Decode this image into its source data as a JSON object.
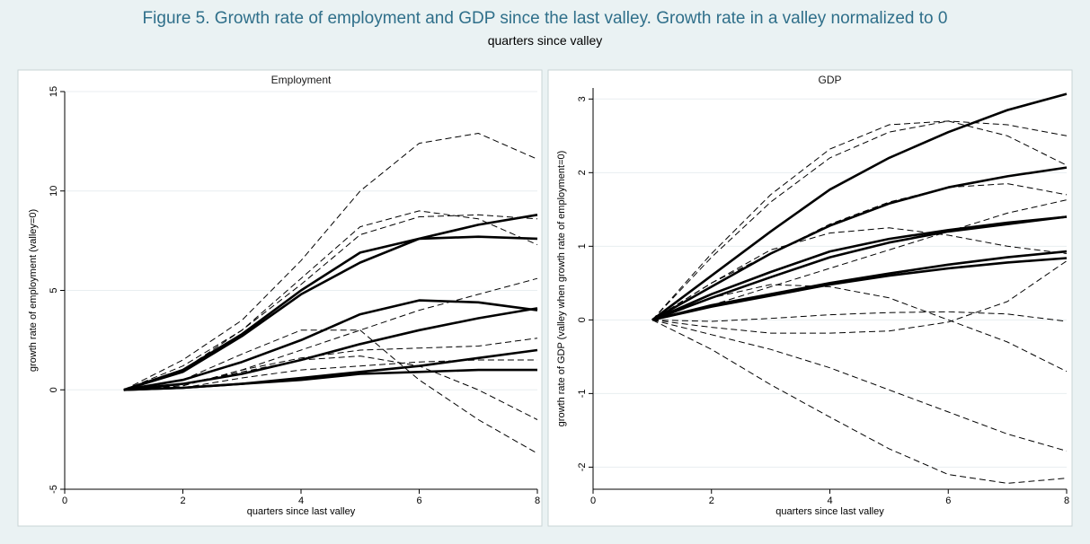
{
  "figure": {
    "title": "Figure 5. Growth rate of employment and GDP since the last valley. Growth rate in a valley normalized to 0",
    "subtitle": "quarters since valley"
  },
  "chart_data": [
    {
      "type": "line",
      "title": "Employment",
      "xlabel": "quarters since last valley",
      "ylabel": "growth rate of employment (valley=0)",
      "xlim": [
        0,
        8
      ],
      "ylim": [
        -5,
        15
      ],
      "xticks": [
        "0",
        "2",
        "4",
        "6",
        "8"
      ],
      "yticks": [
        "-5",
        "0",
        "5",
        "10",
        "15"
      ],
      "x": [
        1,
        2,
        3,
        4,
        5,
        6,
        7,
        8
      ],
      "grid": true,
      "series": [
        {
          "style": "solid",
          "values": [
            0,
            0.9,
            2.7,
            4.8,
            6.4,
            7.6,
            8.3,
            8.8
          ]
        },
        {
          "style": "solid",
          "values": [
            0,
            1.0,
            2.8,
            5.0,
            6.9,
            7.6,
            7.7,
            7.6
          ]
        },
        {
          "style": "solid",
          "values": [
            0,
            0.5,
            1.4,
            2.5,
            3.8,
            4.5,
            4.4,
            4.0
          ]
        },
        {
          "style": "solid",
          "values": [
            0,
            0.3,
            0.8,
            1.5,
            2.3,
            3.0,
            3.6,
            4.1
          ]
        },
        {
          "style": "solid",
          "values": [
            0,
            0.1,
            0.3,
            0.6,
            0.9,
            1.2,
            1.6,
            2.0
          ]
        },
        {
          "style": "solid",
          "values": [
            0,
            0.1,
            0.3,
            0.5,
            0.8,
            0.9,
            1.0,
            1.0
          ]
        },
        {
          "style": "dashed",
          "values": [
            0,
            1.5,
            3.5,
            6.5,
            10.0,
            12.4,
            12.9,
            11.6
          ]
        },
        {
          "style": "dashed",
          "values": [
            0,
            1.2,
            3.0,
            5.6,
            8.2,
            9.0,
            8.6,
            7.3
          ]
        },
        {
          "style": "dashed",
          "values": [
            0,
            1.0,
            3.0,
            5.3,
            7.8,
            8.7,
            8.8,
            8.6
          ]
        },
        {
          "style": "dashed",
          "values": [
            0,
            0.5,
            1.8,
            3.0,
            3.0,
            0.5,
            -1.5,
            -3.2
          ]
        },
        {
          "style": "dashed",
          "values": [
            0,
            0.2,
            1.0,
            2.0,
            3.0,
            4.0,
            4.8,
            5.6
          ]
        },
        {
          "style": "dashed",
          "values": [
            0,
            0.2,
            1.0,
            1.6,
            2.0,
            2.1,
            2.2,
            2.6
          ]
        },
        {
          "style": "dashed",
          "values": [
            0,
            0.3,
            0.9,
            1.5,
            1.7,
            1.2,
            0.0,
            -1.5
          ]
        },
        {
          "style": "dashed",
          "values": [
            0,
            0.1,
            0.6,
            1.0,
            1.2,
            1.4,
            1.5,
            1.5
          ]
        }
      ]
    },
    {
      "type": "line",
      "title": "GDP",
      "xlabel": "quarters since last valley",
      "ylabel": "growth rate of GDP (valley when growth rate of employment=0)",
      "xlim": [
        0,
        8
      ],
      "ylim": [
        -2.3,
        3.15
      ],
      "xticks": [
        "0",
        "2",
        "4",
        "6",
        "8"
      ],
      "yticks": [
        "-2",
        "-1",
        "0",
        "1",
        "2",
        "3"
      ],
      "x": [
        1,
        2,
        3,
        4,
        5,
        6,
        7,
        8
      ],
      "grid": true,
      "series": [
        {
          "style": "solid",
          "values": [
            0,
            0.6,
            1.2,
            1.77,
            2.2,
            2.55,
            2.85,
            3.07
          ]
        },
        {
          "style": "solid",
          "values": [
            0,
            0.45,
            0.9,
            1.28,
            1.58,
            1.8,
            1.95,
            2.07
          ]
        },
        {
          "style": "solid",
          "values": [
            0,
            0.35,
            0.65,
            0.93,
            1.1,
            1.22,
            1.32,
            1.4
          ]
        },
        {
          "style": "solid",
          "values": [
            0,
            0.3,
            0.58,
            0.85,
            1.05,
            1.2,
            1.3,
            1.4
          ]
        },
        {
          "style": "solid",
          "values": [
            0,
            0.2,
            0.35,
            0.5,
            0.63,
            0.75,
            0.85,
            0.93
          ]
        },
        {
          "style": "solid",
          "values": [
            0,
            0.18,
            0.33,
            0.48,
            0.6,
            0.7,
            0.78,
            0.84
          ]
        },
        {
          "style": "dashed",
          "values": [
            0,
            0.9,
            1.7,
            2.32,
            2.65,
            2.7,
            2.65,
            2.5
          ]
        },
        {
          "style": "dashed",
          "values": [
            0,
            0.85,
            1.6,
            2.2,
            2.55,
            2.7,
            2.5,
            2.1
          ]
        },
        {
          "style": "dashed",
          "values": [
            0,
            0.5,
            0.9,
            1.3,
            1.6,
            1.8,
            1.85,
            1.7
          ]
        },
        {
          "style": "dashed",
          "values": [
            0,
            0.5,
            0.95,
            1.18,
            1.25,
            1.15,
            1.0,
            0.9
          ]
        },
        {
          "style": "dashed",
          "values": [
            0,
            0.2,
            0.45,
            0.7,
            0.95,
            1.2,
            1.45,
            1.63
          ]
        },
        {
          "style": "dashed",
          "values": [
            0,
            0.3,
            0.48,
            0.45,
            0.3,
            0.0,
            -0.3,
            -0.7
          ]
        },
        {
          "style": "dashed",
          "values": [
            0,
            -0.02,
            0.02,
            0.07,
            0.1,
            0.11,
            0.08,
            -0.02
          ]
        },
        {
          "style": "dashed",
          "values": [
            0,
            -0.1,
            -0.18,
            -0.18,
            -0.15,
            -0.03,
            0.25,
            0.8
          ]
        },
        {
          "style": "dashed",
          "values": [
            0,
            -0.2,
            -0.4,
            -0.65,
            -0.95,
            -1.25,
            -1.55,
            -1.78
          ]
        },
        {
          "style": "dashed",
          "values": [
            0,
            -0.4,
            -0.88,
            -1.32,
            -1.75,
            -2.1,
            -2.22,
            -2.15
          ]
        }
      ]
    }
  ]
}
